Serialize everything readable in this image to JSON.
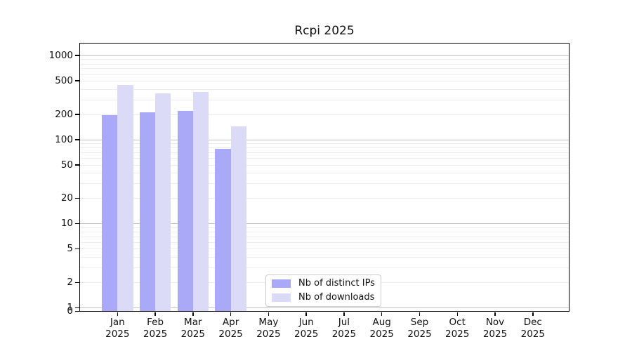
{
  "chart_data": {
    "type": "bar",
    "title": "Rcpi 2025",
    "categories": [
      "Jan 2025",
      "Feb 2025",
      "Mar 2025",
      "Apr 2025",
      "May 2025",
      "Jun 2025",
      "Jul 2025",
      "Aug 2025",
      "Sep 2025",
      "Oct 2025",
      "Nov 2025",
      "Dec 2025"
    ],
    "series": [
      {
        "name": "Nb of distinct IPs",
        "color": "#a9a9f7",
        "values": [
          195,
          210,
          220,
          78,
          null,
          null,
          null,
          null,
          null,
          null,
          null,
          null
        ]
      },
      {
        "name": "Nb of downloads",
        "color": "#dbdbf8",
        "values": [
          445,
          353,
          367,
          142,
          null,
          null,
          null,
          null,
          null,
          null,
          null,
          null
        ]
      }
    ],
    "xlabel": "",
    "ylabel": "",
    "yscale": "log",
    "y_ticks": [
      0,
      1,
      2,
      5,
      10,
      20,
      50,
      100,
      200,
      500,
      1000
    ],
    "ylim": [
      0,
      1440
    ],
    "grid": "horizontal",
    "legend_position": "inside-bottom-center"
  }
}
